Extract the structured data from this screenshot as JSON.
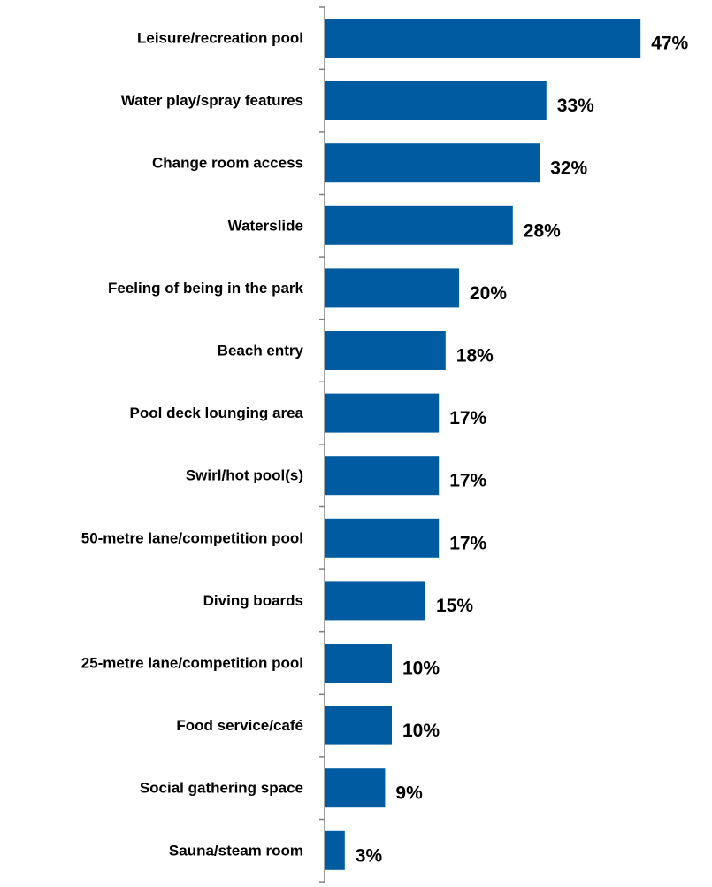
{
  "chart_data": {
    "type": "bar",
    "orientation": "horizontal",
    "categories": [
      "Leisure/recreation pool",
      "Water play/spray features",
      "Change room access",
      "Waterslide",
      "Feeling of being in the park",
      "Beach entry",
      "Pool deck lounging area",
      "Swirl/hot pool(s)",
      "50-metre lane/competition pool",
      "Diving boards",
      "25-metre lane/competition pool",
      "Food service/café",
      "Social gathering space",
      "Sauna/steam room"
    ],
    "values": [
      47,
      33,
      32,
      28,
      20,
      18,
      17,
      17,
      17,
      15,
      10,
      10,
      9,
      3
    ],
    "value_labels": [
      "47%",
      "33%",
      "32%",
      "28%",
      "20%",
      "18%",
      "17%",
      "17%",
      "17%",
      "15%",
      "10%",
      "10%",
      "9%",
      "3%"
    ],
    "xlim": [
      0,
      50
    ],
    "grid": false,
    "legend": "none",
    "bar_color": "#005BA1",
    "label_color": "#000000"
  }
}
